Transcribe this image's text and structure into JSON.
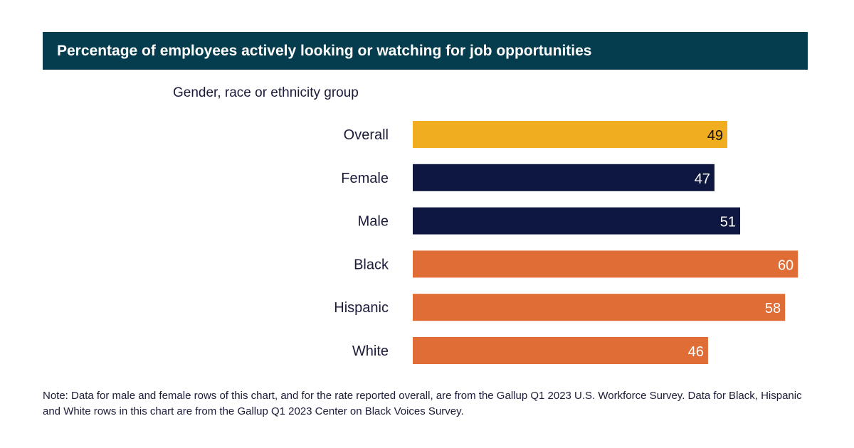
{
  "chart_data": {
    "type": "bar",
    "orientation": "horizontal",
    "title": "Percentage of employees actively looking or watching for job opportunities",
    "ylabel": "Gender, race or ethnicity group",
    "categories": [
      "Overall",
      "Female",
      "Male",
      "Black",
      "Hispanic",
      "White"
    ],
    "values": [
      49,
      47,
      51,
      60,
      58,
      46
    ],
    "colors": [
      "#f0ad1f",
      "#0e1740",
      "#0e1740",
      "#e06d35",
      "#e06d35",
      "#e06d35"
    ],
    "label_colors": [
      "#111111",
      "#ffffff",
      "#ffffff",
      "#ffffff",
      "#ffffff",
      "#ffffff"
    ],
    "xlim": [
      0,
      100
    ],
    "grid": false,
    "data_labels": true
  },
  "note": "Note: Data for male and female rows of this chart, and for the rate reported overall, are from the Gallup Q1 2023 U.S. Workforce Survey. Data for Black, Hispanic and White rows in this chart are from the Gallup Q1 2023 Center on Black Voices Survey."
}
